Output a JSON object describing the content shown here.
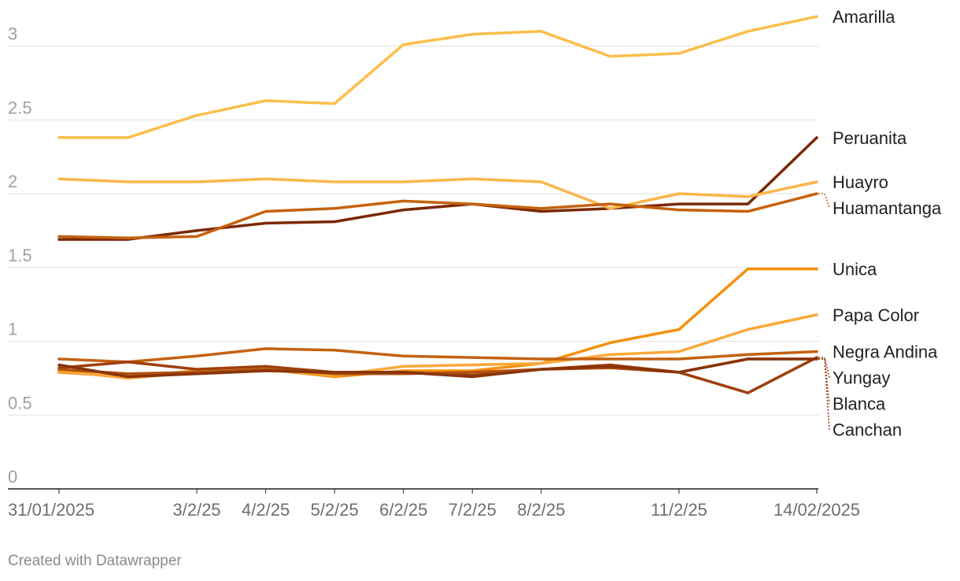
{
  "credit": "Created with Datawrapper",
  "chart_data": {
    "type": "line",
    "x": [
      "31/01/2025",
      "1/2/25",
      "3/2/25",
      "4/2/25",
      "5/2/25",
      "6/2/25",
      "7/2/25",
      "8/2/25",
      "10/2/25",
      "11/2/25",
      "13/2/25",
      "14/02/2025"
    ],
    "x_tick_labels": [
      {
        "index": 0,
        "label": "31/01/2025"
      },
      {
        "index": 2,
        "label": "3/2/25"
      },
      {
        "index": 3,
        "label": "4/2/25"
      },
      {
        "index": 4,
        "label": "5/2/25"
      },
      {
        "index": 5,
        "label": "6/2/25"
      },
      {
        "index": 6,
        "label": "7/2/25"
      },
      {
        "index": 7,
        "label": "8/2/25"
      },
      {
        "index": 9,
        "label": "11/2/25"
      },
      {
        "index": 11,
        "label": "14/02/2025"
      }
    ],
    "y_ticks": [
      "0",
      "0.5",
      "1",
      "1.5",
      "2",
      "2.5",
      "3"
    ],
    "ylim": [
      0,
      3.2
    ],
    "grid": true,
    "legend": "direct labels at right end of lines",
    "series": [
      {
        "name": "Amarilla",
        "color": "#fcbe4a",
        "values": [
          2.38,
          2.38,
          2.53,
          2.63,
          2.61,
          3.01,
          3.08,
          3.1,
          2.93,
          2.95,
          3.1,
          3.2
        ]
      },
      {
        "name": "Peruanita",
        "color": "#7a2806",
        "values": [
          1.69,
          1.69,
          1.75,
          1.8,
          1.81,
          1.89,
          1.93,
          1.88,
          1.9,
          1.93,
          1.93,
          2.38
        ]
      },
      {
        "name": "Huayro",
        "color": "#fbb549",
        "values": [
          2.1,
          2.08,
          2.08,
          2.1,
          2.08,
          2.08,
          2.1,
          2.08,
          1.9,
          2.0,
          1.98,
          2.08
        ]
      },
      {
        "name": "Huamantanga",
        "color": "#c5620f",
        "values": [
          1.71,
          1.7,
          1.71,
          1.88,
          1.9,
          1.95,
          1.93,
          1.9,
          1.93,
          1.89,
          1.88,
          2.0
        ]
      },
      {
        "name": "Unica",
        "color": "#f5900e",
        "values": [
          0.79,
          0.76,
          0.8,
          0.81,
          0.76,
          0.8,
          0.8,
          0.85,
          0.99,
          1.08,
          1.49,
          1.49
        ]
      },
      {
        "name": "Papa Color",
        "color": "#fba83a",
        "values": [
          0.8,
          0.75,
          0.79,
          0.81,
          0.77,
          0.83,
          0.84,
          0.85,
          0.91,
          0.93,
          1.08,
          1.18
        ]
      },
      {
        "name": "Negra Andina",
        "color": "#c46111",
        "values": [
          0.88,
          0.86,
          0.9,
          0.95,
          0.94,
          0.9,
          0.89,
          0.88,
          0.88,
          0.88,
          0.91,
          0.93
        ]
      },
      {
        "name": "Yungay",
        "color": "#9e3f0c",
        "values": [
          0.82,
          0.86,
          0.81,
          0.83,
          0.79,
          0.79,
          0.77,
          0.81,
          0.84,
          0.79,
          0.65,
          0.89
        ]
      },
      {
        "name": "Blanca",
        "color": "#b0510e",
        "values": [
          0.81,
          0.78,
          0.79,
          0.81,
          0.78,
          0.78,
          0.79,
          0.81,
          0.82,
          0.79,
          0.88,
          0.88
        ]
      },
      {
        "name": "Canchan",
        "color": "#8a340a",
        "values": [
          0.84,
          0.76,
          0.78,
          0.8,
          0.79,
          0.79,
          0.76,
          0.81,
          0.83,
          0.79,
          0.88,
          0.88
        ]
      }
    ]
  }
}
